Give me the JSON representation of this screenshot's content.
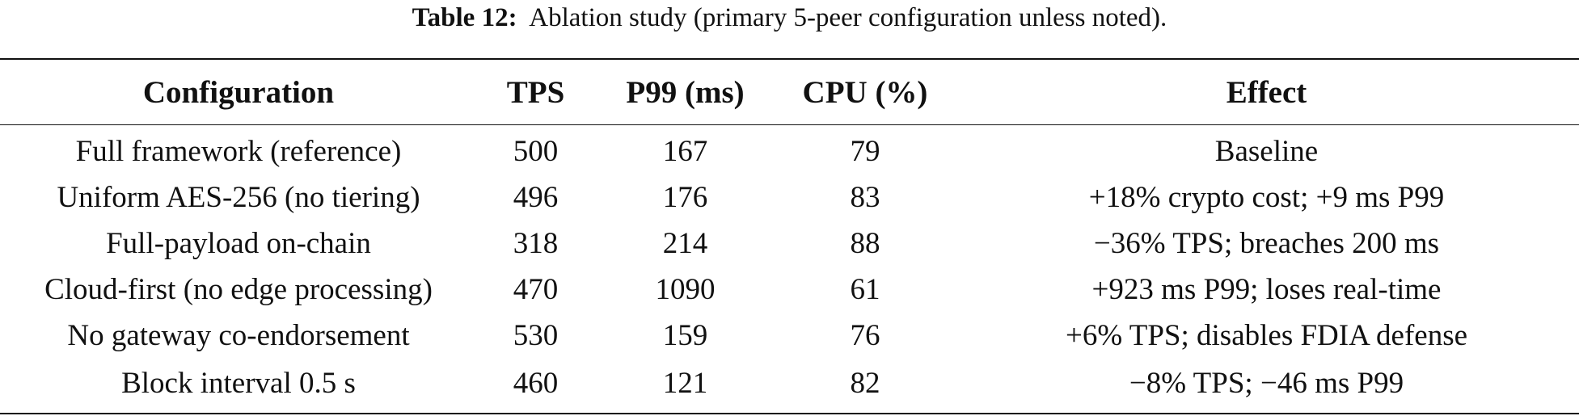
{
  "caption": {
    "label": "Table 12:",
    "text": "Ablation study (primary 5-peer configuration unless noted)."
  },
  "table": {
    "headers": [
      "Configuration",
      "TPS",
      "P99 (ms)",
      "CPU (%)",
      "Effect"
    ],
    "rows": [
      [
        "Full framework (reference)",
        "500",
        "167",
        "79",
        "Baseline"
      ],
      [
        "Uniform AES-256 (no tiering)",
        "496",
        "176",
        "83",
        "+18% crypto cost; +9 ms P99"
      ],
      [
        "Full-payload on-chain",
        "318",
        "214",
        "88",
        "−36% TPS; breaches 200 ms"
      ],
      [
        "Cloud-first (no edge processing)",
        "470",
        "1090",
        "61",
        "+923 ms P99; loses real-time"
      ],
      [
        "No gateway co-endorsement",
        "530",
        "159",
        "76",
        "+6% TPS; disables FDIA defense"
      ],
      [
        "Block interval 0.5 s",
        "460",
        "121",
        "82",
        "−8% TPS; −46 ms P99"
      ]
    ]
  }
}
